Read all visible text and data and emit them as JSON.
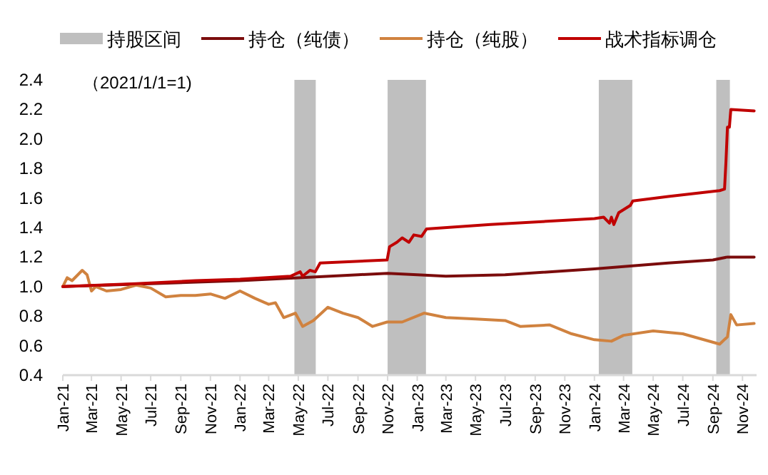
{
  "chart_data": {
    "type": "line",
    "annotations": [
      "（2021/1/1=1)"
    ],
    "legend": "top",
    "grid": false,
    "marker": "none",
    "line_style": "solid",
    "xlim": [
      "2021-01-01",
      "2024-11-30"
    ],
    "ylim": [
      0.4,
      2.4
    ],
    "yticks": [
      {
        "value": 0.4,
        "label": "0.4"
      },
      {
        "value": 0.6,
        "label": "0.6"
      },
      {
        "value": 0.8,
        "label": "0.8"
      },
      {
        "value": 1.0,
        "label": "1.0"
      },
      {
        "value": 1.2,
        "label": "1.2"
      },
      {
        "value": 1.4,
        "label": "1.4"
      },
      {
        "value": 1.6,
        "label": "1.6"
      },
      {
        "value": 1.8,
        "label": "1.8"
      },
      {
        "value": 2.0,
        "label": "2.0"
      },
      {
        "value": 2.2,
        "label": "2.2"
      },
      {
        "value": 2.4,
        "label": "2.4"
      }
    ],
    "xticks": [
      {
        "value": "2021-01-01",
        "label": "Jan-21"
      },
      {
        "value": "2021-03-01",
        "label": "Mar-21"
      },
      {
        "value": "2021-05-01",
        "label": "May-21"
      },
      {
        "value": "2021-07-01",
        "label": "Jul-21"
      },
      {
        "value": "2021-09-01",
        "label": "Sep-21"
      },
      {
        "value": "2021-11-01",
        "label": "Nov-21"
      },
      {
        "value": "2022-01-01",
        "label": "Jan-22"
      },
      {
        "value": "2022-03-01",
        "label": "Mar-22"
      },
      {
        "value": "2022-05-01",
        "label": "May-22"
      },
      {
        "value": "2022-07-01",
        "label": "Jul-22"
      },
      {
        "value": "2022-09-01",
        "label": "Sep-22"
      },
      {
        "value": "2022-11-01",
        "label": "Nov-22"
      },
      {
        "value": "2023-01-01",
        "label": "Jan-23"
      },
      {
        "value": "2023-03-01",
        "label": "Mar-23"
      },
      {
        "value": "2023-05-01",
        "label": "May-23"
      },
      {
        "value": "2023-07-01",
        "label": "Jul-23"
      },
      {
        "value": "2023-09-01",
        "label": "Sep-23"
      },
      {
        "value": "2023-11-01",
        "label": "Nov-23"
      },
      {
        "value": "2024-01-01",
        "label": "Jan-24"
      },
      {
        "value": "2024-03-01",
        "label": "Mar-24"
      },
      {
        "value": "2024-05-01",
        "label": "May-24"
      },
      {
        "value": "2024-07-01",
        "label": "Jul-24"
      },
      {
        "value": "2024-09-01",
        "label": "Sep-24"
      },
      {
        "value": "2024-11-01",
        "label": "Nov-24"
      }
    ],
    "bands": [
      {
        "axis": "x",
        "from": "2022-04-23",
        "to": "2022-06-06",
        "label": "持股区间",
        "color": "#bfbfbf"
      },
      {
        "axis": "x",
        "from": "2022-11-01",
        "to": "2023-01-19",
        "color": "#bfbfbf"
      },
      {
        "axis": "x",
        "from": "2024-01-10",
        "to": "2024-03-19",
        "color": "#bfbfbf"
      },
      {
        "axis": "x",
        "from": "2024-09-08",
        "to": "2024-10-06",
        "color": "#bfbfbf"
      }
    ],
    "series": [
      {
        "name": "持仓（纯债）",
        "color": "#7b0c0c",
        "x": [
          "2021-01-01",
          "2021-07-01",
          "2022-01-01",
          "2022-05-01",
          "2022-09-01",
          "2022-11-01",
          "2023-01-01",
          "2023-03-01",
          "2023-07-01",
          "2024-01-01",
          "2024-06-01",
          "2024-09-01",
          "2024-10-01",
          "2024-11-25"
        ],
        "values": [
          1.0,
          1.02,
          1.04,
          1.06,
          1.08,
          1.09,
          1.08,
          1.07,
          1.08,
          1.12,
          1.16,
          1.18,
          1.2,
          1.2
        ]
      },
      {
        "name": "持仓（纯股）",
        "color": "#d0823f",
        "x": [
          "2021-01-01",
          "2021-01-10",
          "2021-01-20",
          "2021-02-01",
          "2021-02-10",
          "2021-02-20",
          "2021-03-01",
          "2021-03-10",
          "2021-04-01",
          "2021-05-01",
          "2021-06-01",
          "2021-07-01",
          "2021-08-01",
          "2021-09-01",
          "2021-10-01",
          "2021-11-01",
          "2021-12-01",
          "2022-01-01",
          "2022-02-01",
          "2022-03-01",
          "2022-03-15",
          "2022-04-01",
          "2022-04-25",
          "2022-05-10",
          "2022-06-01",
          "2022-07-01",
          "2022-08-01",
          "2022-09-01",
          "2022-10-01",
          "2022-10-31",
          "2022-12-01",
          "2023-01-15",
          "2023-03-01",
          "2023-05-01",
          "2023-07-01",
          "2023-08-01",
          "2023-10-01",
          "2023-11-15",
          "2024-01-01",
          "2024-02-05",
          "2024-03-01",
          "2024-05-01",
          "2024-07-01",
          "2024-09-15",
          "2024-10-01",
          "2024-10-08",
          "2024-10-20",
          "2024-11-25"
        ],
        "values": [
          1.0,
          1.06,
          1.04,
          1.08,
          1.11,
          1.08,
          0.97,
          1.0,
          0.97,
          0.98,
          1.01,
          0.99,
          0.93,
          0.94,
          0.94,
          0.95,
          0.92,
          0.97,
          0.92,
          0.88,
          0.89,
          0.79,
          0.82,
          0.73,
          0.77,
          0.86,
          0.82,
          0.79,
          0.73,
          0.76,
          0.76,
          0.82,
          0.79,
          0.78,
          0.77,
          0.73,
          0.74,
          0.68,
          0.64,
          0.63,
          0.67,
          0.7,
          0.68,
          0.61,
          0.66,
          0.81,
          0.74,
          0.75
        ]
      },
      {
        "name": "战术指标调仓",
        "color": "#c00000",
        "x": [
          "2021-01-01",
          "2021-06-01",
          "2021-10-01",
          "2022-01-01",
          "2022-04-15",
          "2022-05-05",
          "2022-05-10",
          "2022-05-25",
          "2022-06-05",
          "2022-06-15",
          "2022-10-31",
          "2022-11-05",
          "2022-11-20",
          "2022-12-01",
          "2022-12-15",
          "2022-12-25",
          "2023-01-10",
          "2023-01-20",
          "2023-06-01",
          "2024-01-01",
          "2024-01-20",
          "2024-02-01",
          "2024-02-05",
          "2024-02-10",
          "2024-02-20",
          "2024-03-15",
          "2024-03-20",
          "2024-06-01",
          "2024-09-15",
          "2024-09-25",
          "2024-09-28",
          "2024-10-01",
          "2024-10-05",
          "2024-10-08",
          "2024-11-25"
        ],
        "values": [
          1.0,
          1.02,
          1.04,
          1.05,
          1.07,
          1.1,
          1.07,
          1.11,
          1.1,
          1.16,
          1.18,
          1.27,
          1.3,
          1.33,
          1.3,
          1.35,
          1.34,
          1.39,
          1.42,
          1.46,
          1.47,
          1.43,
          1.47,
          1.42,
          1.5,
          1.55,
          1.58,
          1.61,
          1.65,
          1.66,
          1.85,
          2.08,
          2.08,
          2.2,
          2.19
        ]
      }
    ]
  }
}
